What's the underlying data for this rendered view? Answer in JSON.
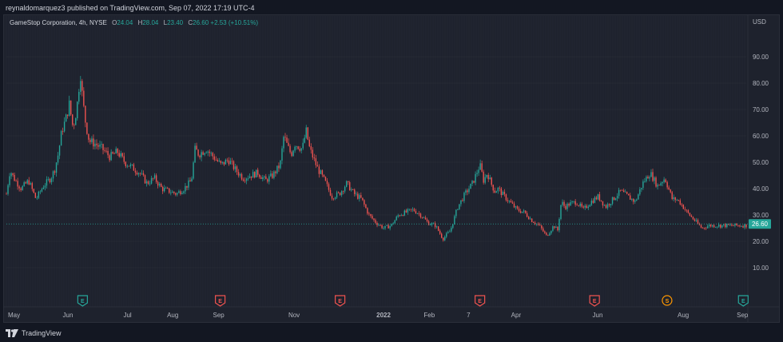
{
  "header": {
    "published_text": "reynaldomarquez3 published on TradingView.com, Sep 07, 2022 17:19 UTC-4"
  },
  "legend": {
    "symbol": "GameStop Corporation, 4h, NYSE",
    "open_label": "O",
    "open": "24.04",
    "high_label": "H",
    "high": "28.04",
    "low_label": "L",
    "low": "23.40",
    "close_label": "C",
    "close": "26.60",
    "change": "+2.53 (+10.51%)"
  },
  "price_axis": {
    "units": "USD",
    "last_price_label": "26.60"
  },
  "footer": {
    "logo_text": "TradingView"
  },
  "colors": {
    "background": "#131722",
    "pane": "#1e222d",
    "up": "#26a69a",
    "down": "#ef5350",
    "grid": "#2a2e39",
    "axis_text": "#b2b5be",
    "earnings_marker": "#ef5350",
    "earnings_marker_up": "#26a69a",
    "split_marker": "#ff9800"
  },
  "chart_data": {
    "type": "line",
    "title": "GameStop Corporation, 4h, NYSE",
    "xlabel": "",
    "ylabel": "USD",
    "ylim": [
      0,
      100
    ],
    "y_ticks": [
      10,
      20,
      30,
      40,
      50,
      60,
      70,
      80,
      90
    ],
    "y_tick_labels": [
      "10.00",
      "20.00",
      "30.00",
      "40.00",
      "50.00",
      "60.00",
      "70.00",
      "80.00",
      "90.00"
    ],
    "x_tick_labels": [
      "May",
      "Jun",
      "Jul",
      "Aug",
      "Sep",
      "Nov",
      "2022",
      "Feb",
      "7",
      "Apr",
      "Jun",
      "Aug",
      "Sep"
    ],
    "x_tick_bold": [
      false,
      false,
      false,
      false,
      false,
      false,
      true,
      false,
      false,
      false,
      false,
      false,
      false
    ],
    "x_tick_positions": [
      0.0,
      0.074,
      0.156,
      0.215,
      0.277,
      0.379,
      0.498,
      0.562,
      0.62,
      0.68,
      0.79,
      0.905,
      0.985
    ],
    "events": [
      {
        "label": "E",
        "kind": "earnings-up",
        "x": 0.103
      },
      {
        "label": "E",
        "kind": "earnings-down",
        "x": 0.289
      },
      {
        "label": "E",
        "kind": "earnings-down",
        "x": 0.451
      },
      {
        "label": "E",
        "kind": "earnings-down",
        "x": 0.64
      },
      {
        "label": "E",
        "kind": "earnings-down",
        "x": 0.795
      },
      {
        "label": "S",
        "kind": "split",
        "x": 0.893
      },
      {
        "label": "E",
        "kind": "earnings-up",
        "x": 0.996
      }
    ],
    "series": [
      {
        "values_x": [
          0.0,
          0.005,
          0.01,
          0.02,
          0.03,
          0.04,
          0.05,
          0.06,
          0.065,
          0.07,
          0.075,
          0.08,
          0.085,
          0.09,
          0.095,
          0.1,
          0.103,
          0.107,
          0.112,
          0.12,
          0.13,
          0.14,
          0.15,
          0.16,
          0.17,
          0.18,
          0.19,
          0.2,
          0.21,
          0.22,
          0.23,
          0.24,
          0.25,
          0.255,
          0.26,
          0.27,
          0.28,
          0.29,
          0.3,
          0.31,
          0.32,
          0.33,
          0.34,
          0.35,
          0.36,
          0.37,
          0.375,
          0.38,
          0.385,
          0.39,
          0.4,
          0.405,
          0.41,
          0.42,
          0.43,
          0.44,
          0.45,
          0.46,
          0.47,
          0.48,
          0.49,
          0.5,
          0.51,
          0.52,
          0.53,
          0.54,
          0.55,
          0.56,
          0.57,
          0.58,
          0.59,
          0.6,
          0.61,
          0.62,
          0.63,
          0.64,
          0.645,
          0.65,
          0.655,
          0.66,
          0.665,
          0.67,
          0.68,
          0.69,
          0.7,
          0.71,
          0.72,
          0.73,
          0.74,
          0.745,
          0.75,
          0.755,
          0.76,
          0.77,
          0.78,
          0.79,
          0.8,
          0.81,
          0.82,
          0.83,
          0.84,
          0.85,
          0.86,
          0.87,
          0.88,
          0.89,
          0.9,
          0.905,
          0.91,
          0.92,
          0.93,
          0.94,
          0.95,
          0.96,
          0.97,
          0.98,
          0.99,
          1.0
        ],
        "values": [
          38,
          47,
          44,
          40,
          43,
          36,
          41,
          44,
          47,
          53,
          62,
          66,
          72,
          63,
          70,
          84,
          74,
          65,
          58,
          57,
          55,
          52,
          54,
          50,
          48,
          46,
          42,
          44,
          40,
          39,
          38,
          40,
          43,
          55,
          53,
          55,
          52,
          49,
          51,
          47,
          44,
          45,
          46,
          43,
          45,
          49,
          60,
          56,
          53,
          57,
          55,
          62,
          55,
          48,
          43,
          37,
          38,
          42,
          38,
          36,
          30,
          27,
          25,
          26,
          30,
          31,
          32,
          30,
          27,
          26,
          21,
          24,
          33,
          38,
          42,
          49,
          43,
          46,
          42,
          39,
          40,
          38,
          35,
          32,
          31,
          28,
          26,
          22,
          26,
          24,
          35,
          33,
          34,
          35,
          32,
          35,
          37,
          33,
          36,
          39,
          37,
          35,
          42,
          46,
          41,
          44,
          36,
          36,
          35,
          31,
          28,
          25,
          26,
          26,
          26,
          26,
          26,
          26
        ]
      }
    ]
  }
}
